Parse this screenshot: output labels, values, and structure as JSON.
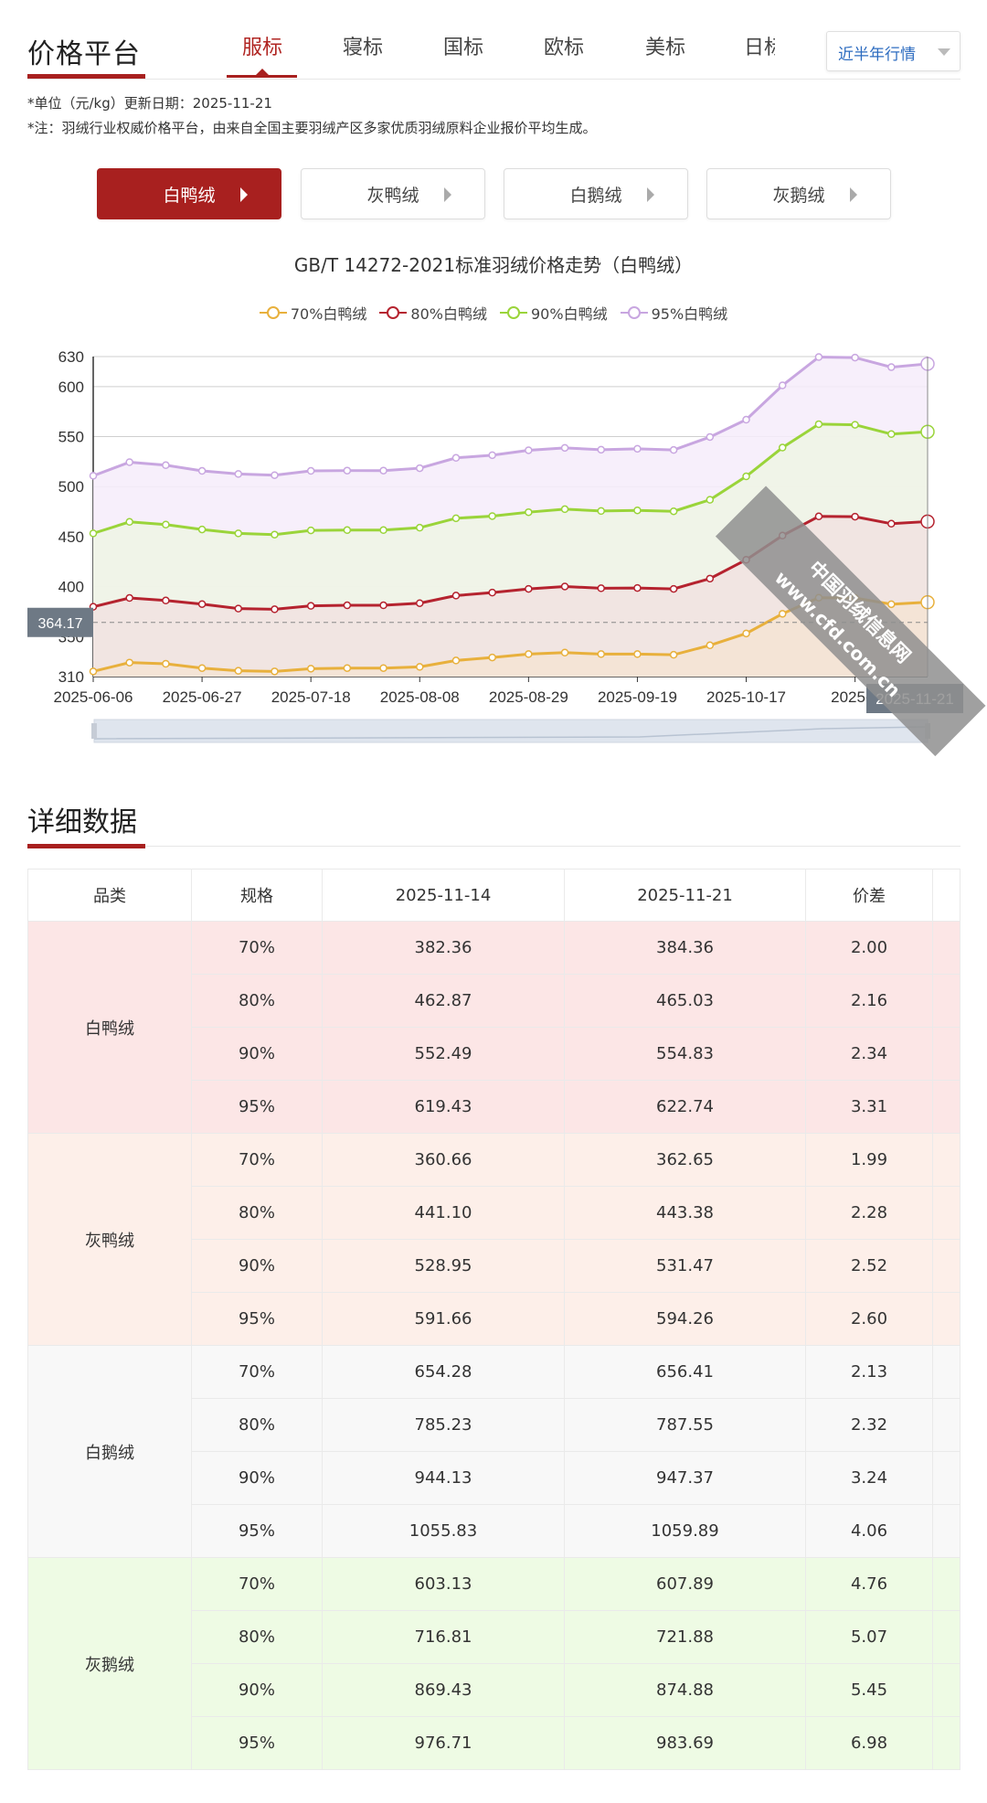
{
  "header": {
    "title": "价格平台",
    "tabs": [
      "服标",
      "寝标",
      "国标",
      "欧标",
      "美标",
      "日标"
    ],
    "active_tab": "服标",
    "range_select": "近半年行情"
  },
  "notes": {
    "unit": "*单位（元/kg）更新日期：2025-11-21",
    "note": "*注：羽绒行业权威价格平台，由来自全国主要羽绒产区多家优质羽绒原料企业报价平均生成。"
  },
  "categories": [
    {
      "label": "白鸭绒",
      "active": true
    },
    {
      "label": "灰鸭绒"
    },
    {
      "label": "白鹅绒"
    },
    {
      "label": "灰鹅绒"
    }
  ],
  "watermark": {
    "line1": "中国羽绒信息网",
    "line2": "www.cfd.com.cn"
  },
  "chart_data": {
    "type": "area",
    "title": "GB/T 14272-2021标准羽绒价格走势（白鸭绒）",
    "x": [
      "2025-06-06",
      "2025-06-13",
      "2025-06-20",
      "2025-06-27",
      "2025-07-04",
      "2025-07-11",
      "2025-07-18",
      "2025-07-25",
      "2025-08-01",
      "2025-08-08",
      "2025-08-15",
      "2025-08-22",
      "2025-08-29",
      "2025-09-05",
      "2025-09-12",
      "2025-09-19",
      "2025-09-26",
      "2025-10-10",
      "2025-10-17",
      "2025-10-24",
      "2025-10-31",
      "2025-11-07",
      "2025-11-14",
      "2025-11-21"
    ],
    "x_tick_labels": [
      "2025-06-06",
      "2025-06-27",
      "2025-07-18",
      "2025-08-08",
      "2025-08-29",
      "2025-09-19",
      "2025-10-17",
      "2025-1",
      "2025-11-21"
    ],
    "yticks": [
      310,
      350,
      400,
      450,
      500,
      550,
      600,
      630
    ],
    "ylim": [
      310,
      630
    ],
    "grid": true,
    "legend": "top",
    "axis_pointer": {
      "y_value": "364.17",
      "x_value": "2025-11-21",
      "y": 364.17
    },
    "series": [
      {
        "name": "70%白鸭绒",
        "color": "#e8b03c",
        "values": [
          315.2,
          324.0,
          322.8,
          318.5,
          315.8,
          315.2,
          317.9,
          318.5,
          318.5,
          319.7,
          326.1,
          329.1,
          332.5,
          334.0,
          332.5,
          332.5,
          331.8,
          341.3,
          353.1,
          372.8,
          388.9,
          388.6,
          382.36,
          384.36
        ]
      },
      {
        "name": "80%白鸭绒",
        "color": "#b5232f",
        "values": [
          379.8,
          388.6,
          386.1,
          382.5,
          378.0,
          377.3,
          380.7,
          381.3,
          381.3,
          383.4,
          391.0,
          394.0,
          397.7,
          400.1,
          398.3,
          398.6,
          397.7,
          408.0,
          426.8,
          451.0,
          470.2,
          469.9,
          462.87,
          465.03
        ]
      },
      {
        "name": "90%白鸭绒",
        "color": "#9ad43a",
        "values": [
          453.2,
          464.7,
          462.0,
          457.1,
          453.2,
          452.0,
          456.2,
          456.5,
          456.5,
          458.9,
          468.3,
          470.5,
          474.4,
          477.4,
          475.6,
          476.2,
          475.3,
          486.8,
          510.2,
          539.0,
          562.4,
          561.8,
          552.49,
          554.83
        ]
      },
      {
        "name": "95%白鸭绒",
        "color": "#c8a6e0",
        "values": [
          510.8,
          524.4,
          521.4,
          515.7,
          512.6,
          511.4,
          515.7,
          516.0,
          516.0,
          518.4,
          528.7,
          531.4,
          536.3,
          538.7,
          536.9,
          537.8,
          536.6,
          549.6,
          566.9,
          601.2,
          629.5,
          629.0,
          619.43,
          622.74
        ]
      }
    ]
  },
  "details": {
    "title": "详细数据",
    "columns": [
      "品类",
      "规格",
      "2025-11-14",
      "2025-11-21",
      "价差"
    ],
    "groups": [
      {
        "name": "白鸭绒",
        "rows": [
          [
            "70%",
            "382.36",
            "384.36",
            "2.00"
          ],
          [
            "80%",
            "462.87",
            "465.03",
            "2.16"
          ],
          [
            "90%",
            "552.49",
            "554.83",
            "2.34"
          ],
          [
            "95%",
            "619.43",
            "622.74",
            "3.31"
          ]
        ]
      },
      {
        "name": "灰鸭绒",
        "rows": [
          [
            "70%",
            "360.66",
            "362.65",
            "1.99"
          ],
          [
            "80%",
            "441.10",
            "443.38",
            "2.28"
          ],
          [
            "90%",
            "528.95",
            "531.47",
            "2.52"
          ],
          [
            "95%",
            "591.66",
            "594.26",
            "2.60"
          ]
        ]
      },
      {
        "name": "白鹅绒",
        "rows": [
          [
            "70%",
            "654.28",
            "656.41",
            "2.13"
          ],
          [
            "80%",
            "785.23",
            "787.55",
            "2.32"
          ],
          [
            "90%",
            "944.13",
            "947.37",
            "3.24"
          ],
          [
            "95%",
            "1055.83",
            "1059.89",
            "4.06"
          ]
        ]
      },
      {
        "name": "灰鹅绒",
        "rows": [
          [
            "70%",
            "603.13",
            "607.89",
            "4.76"
          ],
          [
            "80%",
            "716.81",
            "721.88",
            "5.07"
          ],
          [
            "90%",
            "869.43",
            "874.88",
            "5.45"
          ],
          [
            "95%",
            "976.71",
            "983.69",
            "6.98"
          ]
        ]
      }
    ]
  }
}
